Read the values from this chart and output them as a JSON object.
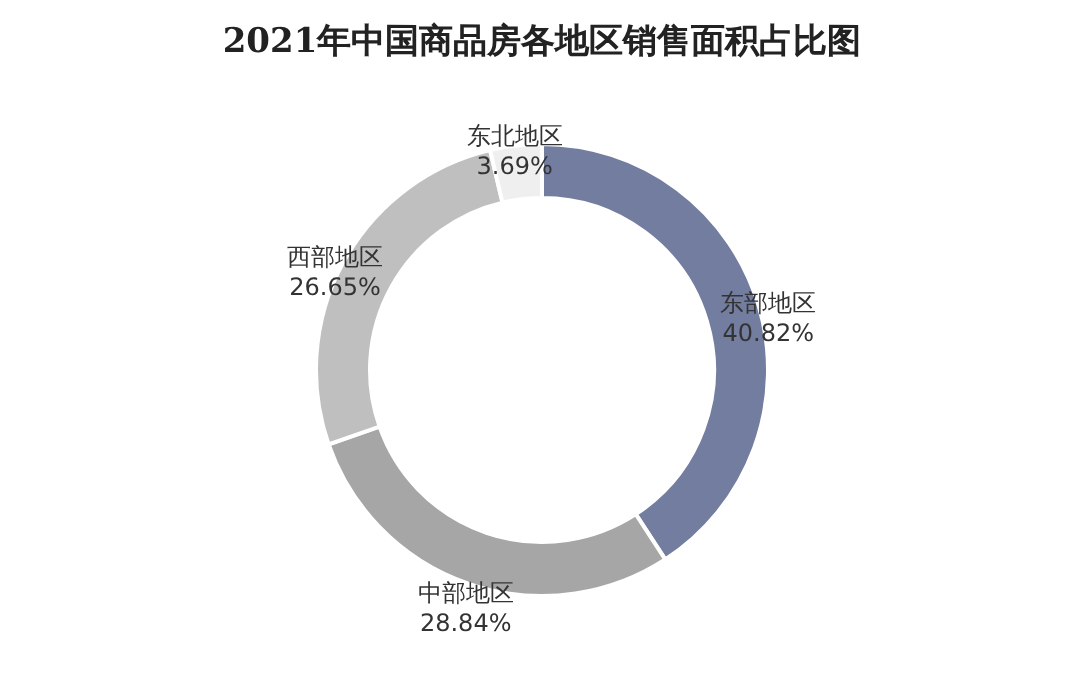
{
  "chart_data": {
    "type": "donut",
    "title": "2021年中国商品房各地区销售面积占比图",
    "categories": [
      "东部地区",
      "中部地区",
      "西部地区",
      "东北地区"
    ],
    "values": [
      40.82,
      28.84,
      26.65,
      3.69
    ],
    "value_labels": [
      "40.82%",
      "28.84%",
      "26.65%",
      "3.69%"
    ],
    "colors": [
      "#727d9f",
      "#a6a6a6",
      "#bfbfbf",
      "#efefef"
    ],
    "legend": false
  }
}
